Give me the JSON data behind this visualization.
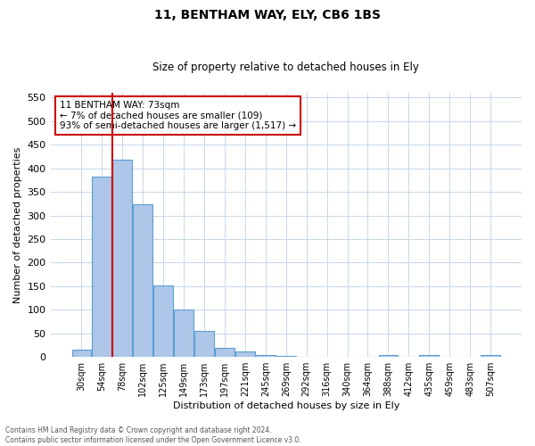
{
  "title": "11, BENTHAM WAY, ELY, CB6 1BS",
  "subtitle": "Size of property relative to detached houses in Ely",
  "xlabel": "Distribution of detached houses by size in Ely",
  "ylabel": "Number of detached properties",
  "footer_line1": "Contains HM Land Registry data © Crown copyright and database right 2024.",
  "footer_line2": "Contains public sector information licensed under the Open Government Licence v3.0.",
  "bar_labels": [
    "30sqm",
    "54sqm",
    "78sqm",
    "102sqm",
    "125sqm",
    "149sqm",
    "173sqm",
    "197sqm",
    "221sqm",
    "245sqm",
    "269sqm",
    "292sqm",
    "316sqm",
    "340sqm",
    "364sqm",
    "388sqm",
    "412sqm",
    "435sqm",
    "459sqm",
    "483sqm",
    "507sqm"
  ],
  "bar_values": [
    15,
    383,
    418,
    323,
    152,
    100,
    55,
    19,
    11,
    5,
    2,
    1,
    1,
    0,
    0,
    5,
    0,
    5,
    0,
    0,
    5
  ],
  "bar_color": "#aec6e8",
  "bar_edge_color": "#5a9fd4",
  "ylim": [
    0,
    560
  ],
  "yticks": [
    0,
    50,
    100,
    150,
    200,
    250,
    300,
    350,
    400,
    450,
    500,
    550
  ],
  "property_line_color": "#cc0000",
  "annotation_text": "11 BENTHAM WAY: 73sqm\n← 7% of detached houses are smaller (109)\n93% of semi-detached houses are larger (1,517) →",
  "annotation_box_color": "#cc0000",
  "background_color": "#ffffff",
  "grid_color": "#c8d8e8"
}
